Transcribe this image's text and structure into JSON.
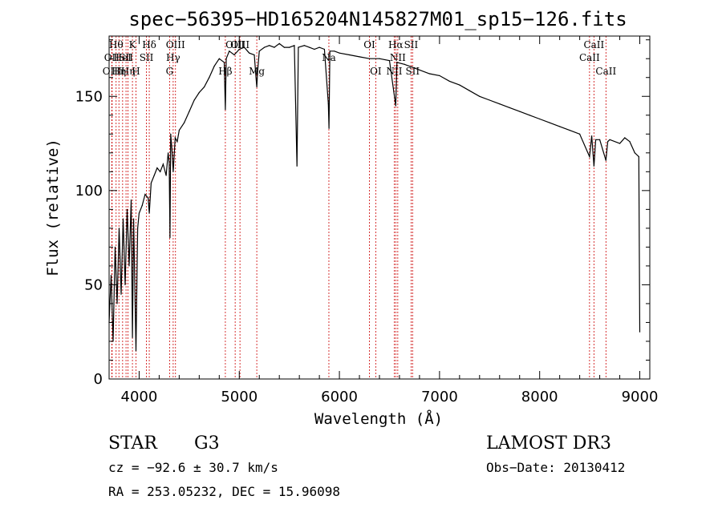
{
  "chart_data": {
    "type": "line",
    "title": "spec−56395−HD165204N145827M01_sp15−126.fits",
    "xlabel": "Wavelength (Å)",
    "ylabel": "Flux (relative)",
    "xlim": [
      3700,
      9100
    ],
    "ylim": [
      0,
      182
    ],
    "xticks": [
      4000,
      5000,
      6000,
      7000,
      8000,
      9000
    ],
    "yticks": [
      0,
      50,
      100,
      150
    ],
    "series": [
      {
        "color": "#000000",
        "points": [
          [
            3700,
            30
          ],
          [
            3720,
            55
          ],
          [
            3740,
            20
          ],
          [
            3760,
            70
          ],
          [
            3780,
            40
          ],
          [
            3800,
            80
          ],
          [
            3820,
            45
          ],
          [
            3840,
            85
          ],
          [
            3860,
            50
          ],
          [
            3880,
            90
          ],
          [
            3900,
            60
          ],
          [
            3920,
            95
          ],
          [
            3933,
            22
          ],
          [
            3945,
            85
          ],
          [
            3968,
            15
          ],
          [
            3985,
            80
          ],
          [
            4000,
            88
          ],
          [
            4030,
            92
          ],
          [
            4060,
            98
          ],
          [
            4090,
            96
          ],
          [
            4101,
            88
          ],
          [
            4120,
            104
          ],
          [
            4150,
            108
          ],
          [
            4180,
            112
          ],
          [
            4210,
            110
          ],
          [
            4240,
            114
          ],
          [
            4270,
            108
          ],
          [
            4290,
            120
          ],
          [
            4300,
            115
          ],
          [
            4308,
            75
          ],
          [
            4315,
            130
          ],
          [
            4330,
            120
          ],
          [
            4340,
            110
          ],
          [
            4360,
            128
          ],
          [
            4380,
            126
          ],
          [
            4400,
            132
          ],
          [
            4450,
            136
          ],
          [
            4500,
            142
          ],
          [
            4550,
            148
          ],
          [
            4600,
            152
          ],
          [
            4650,
            155
          ],
          [
            4700,
            160
          ],
          [
            4750,
            166
          ],
          [
            4800,
            170
          ],
          [
            4850,
            168
          ],
          [
            4861,
            143
          ],
          [
            4870,
            170
          ],
          [
            4900,
            174
          ],
          [
            4950,
            172
          ],
          [
            5000,
            175
          ],
          [
            5050,
            176
          ],
          [
            5100,
            173
          ],
          [
            5150,
            172
          ],
          [
            5167,
            160
          ],
          [
            5175,
            155
          ],
          [
            5183,
            163
          ],
          [
            5200,
            174
          ],
          [
            5250,
            176
          ],
          [
            5300,
            177
          ],
          [
            5350,
            176
          ],
          [
            5400,
            178
          ],
          [
            5450,
            176
          ],
          [
            5500,
            176
          ],
          [
            5550,
            177
          ],
          [
            5576,
            113
          ],
          [
            5590,
            176
          ],
          [
            5650,
            177
          ],
          [
            5700,
            176
          ],
          [
            5750,
            175
          ],
          [
            5800,
            176
          ],
          [
            5850,
            175
          ],
          [
            5890,
            146
          ],
          [
            5896,
            133
          ],
          [
            5905,
            174
          ],
          [
            5950,
            174
          ],
          [
            6000,
            173
          ],
          [
            6100,
            172
          ],
          [
            6200,
            171
          ],
          [
            6300,
            170
          ],
          [
            6400,
            170
          ],
          [
            6500,
            169
          ],
          [
            6563,
            145
          ],
          [
            6575,
            168
          ],
          [
            6650,
            167
          ],
          [
            6700,
            166
          ],
          [
            6800,
            164
          ],
          [
            6900,
            162
          ],
          [
            7000,
            161
          ],
          [
            7100,
            158
          ],
          [
            7200,
            156
          ],
          [
            7300,
            153
          ],
          [
            7400,
            150
          ],
          [
            7500,
            148
          ],
          [
            7600,
            146
          ],
          [
            7700,
            144
          ],
          [
            7800,
            142
          ],
          [
            7900,
            140
          ],
          [
            8000,
            138
          ],
          [
            8100,
            136
          ],
          [
            8200,
            134
          ],
          [
            8300,
            132
          ],
          [
            8400,
            130
          ],
          [
            8498,
            118
          ],
          [
            8520,
            129
          ],
          [
            8542,
            113
          ],
          [
            8560,
            127
          ],
          [
            8600,
            127
          ],
          [
            8662,
            116
          ],
          [
            8680,
            126
          ],
          [
            8700,
            127
          ],
          [
            8800,
            125
          ],
          [
            8850,
            128
          ],
          [
            8900,
            126
          ],
          [
            8950,
            120
          ],
          [
            8990,
            118
          ],
          [
            9000,
            25
          ]
        ]
      }
    ],
    "lines": [
      {
        "x": 3727,
        "label": "OII",
        "row": 2
      },
      {
        "x": 3730,
        "label": "OIII",
        "row": 3
      },
      {
        "x": 3770,
        "label": "Hθ",
        "row": 1
      },
      {
        "x": 3798,
        "label": "Hη",
        "row": 3
      },
      {
        "x": 3835,
        "label": "HeI",
        "row": 2
      },
      {
        "x": 3869,
        "label": "SII",
        "row": 2
      },
      {
        "x": 3889,
        "label": "Hη",
        "row": 3
      },
      {
        "x": 3933,
        "label": "K",
        "row": 1
      },
      {
        "x": 3968,
        "label": "H",
        "row": 3
      },
      {
        "x": 4101,
        "label": "Hδ",
        "row": 1
      },
      {
        "x": 4073,
        "label": "SII",
        "row": 2
      },
      {
        "x": 4304,
        "label": "G",
        "row": 3
      },
      {
        "x": 4340,
        "label": "Hγ",
        "row": 2
      },
      {
        "x": 4363,
        "label": "OIII",
        "row": 1
      },
      {
        "x": 4861,
        "label": "Hβ",
        "row": 3
      },
      {
        "x": 4959,
        "label": "OIII",
        "row": 1
      },
      {
        "x": 5007,
        "label": "OIII",
        "row": 1
      },
      {
        "x": 5175,
        "label": "Mg",
        "row": 3
      },
      {
        "x": 5895,
        "label": "Na",
        "row": 2
      },
      {
        "x": 6300,
        "label": "OI",
        "row": 1
      },
      {
        "x": 6363,
        "label": "OI",
        "row": 3
      },
      {
        "x": 6548,
        "label": "NII",
        "row": 3
      },
      {
        "x": 6563,
        "label": "Hα",
        "row": 1
      },
      {
        "x": 6583,
        "label": "NII",
        "row": 2
      },
      {
        "x": 6716,
        "label": "SII",
        "row": 1
      },
      {
        "x": 6731,
        "label": "SII",
        "row": 3
      },
      {
        "x": 8498,
        "label": "CaII",
        "row": 2
      },
      {
        "x": 8542,
        "label": "CaII",
        "row": 1
      },
      {
        "x": 8662,
        "label": "CaII",
        "row": 3
      }
    ],
    "line_color": "#cc0000",
    "grid": false
  },
  "info": {
    "object_type": "STAR",
    "subclass": "G3",
    "survey": "LAMOST DR3",
    "redshift": "cz = −92.6 ± 30.7 km/s",
    "obs_date": "Obs−Date: 20130412",
    "coords": "RA = 253.05232, DEC =  15.96098"
  }
}
